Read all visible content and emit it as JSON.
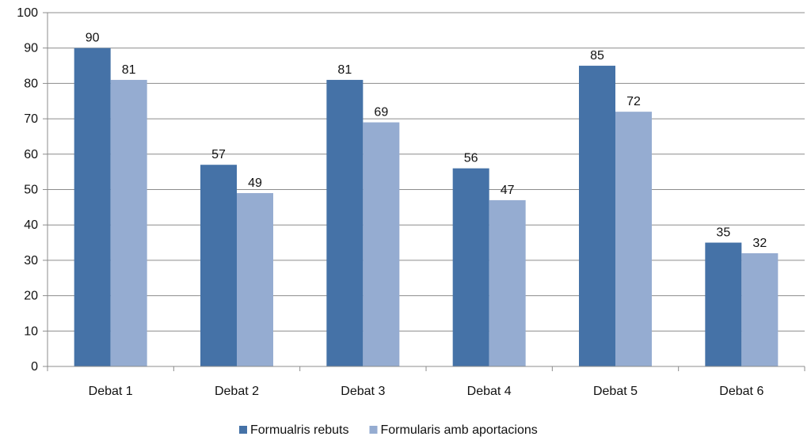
{
  "chart_data": {
    "type": "bar",
    "categories": [
      "Debat 1",
      "Debat 2",
      "Debat 3",
      "Debat 4",
      "Debat 5",
      "Debat 6"
    ],
    "series": [
      {
        "name": "Formualris rebuts",
        "values": [
          90,
          57,
          81,
          56,
          85,
          35
        ],
        "color": "#4572A7"
      },
      {
        "name": "Formularis amb aportacions",
        "values": [
          81,
          49,
          69,
          47,
          72,
          32
        ],
        "color": "#95ACD1"
      }
    ],
    "ylim": [
      0,
      100
    ],
    "yticks": [
      0,
      10,
      20,
      30,
      40,
      50,
      60,
      70,
      80,
      90,
      100
    ],
    "grid": true,
    "legend_position": "bottom",
    "data_labels": true
  }
}
